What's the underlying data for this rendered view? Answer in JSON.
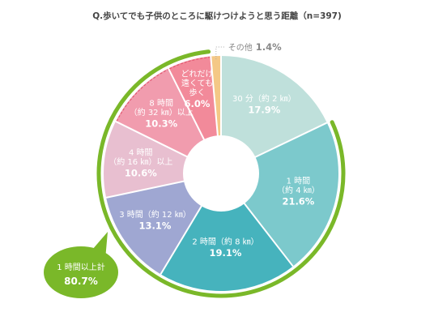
{
  "chart_data": {
    "type": "pie",
    "title": "Q.歩いてでも子供のところに駆けつけようと思う距離（n=397)",
    "slices": [
      {
        "lines": [
          "30 分（約 2 ㎞）"
        ],
        "value": 17.9,
        "display": "17.9%",
        "color": "#bfe0db"
      },
      {
        "lines": [
          "1 時間",
          "（約 4 ㎞）"
        ],
        "value": 21.6,
        "display": "21.6%",
        "color": "#7cc9cc"
      },
      {
        "lines": [
          "2 時間（約 8 ㎞）"
        ],
        "value": 19.1,
        "display": "19.1%",
        "color": "#46b3bd"
      },
      {
        "lines": [
          "3 時間（約 12 ㎞）"
        ],
        "value": 13.1,
        "display": "13.1%",
        "color": "#9fa7d2"
      },
      {
        "lines": [
          "4 時間",
          "（約 16 ㎞）以上"
        ],
        "value": 10.6,
        "display": "10.6%",
        "color": "#e8bfd0"
      },
      {
        "lines": [
          "8 時間",
          "（約 32 ㎞）以上"
        ],
        "value": 10.3,
        "display": "10.3%",
        "color": "#f19cae"
      },
      {
        "lines": [
          "どれだけ",
          "遠くても",
          "歩く"
        ],
        "value": 6.0,
        "display": "6.0%",
        "color": "#f28a9a"
      },
      {
        "lines": [
          "その他"
        ],
        "value": 1.4,
        "display": "1.4%",
        "color": "#f4c886"
      }
    ],
    "group_highlight": {
      "lines": [
        "1 時間以上計"
      ],
      "display": "80.7%",
      "color": "#7ab829"
    }
  }
}
